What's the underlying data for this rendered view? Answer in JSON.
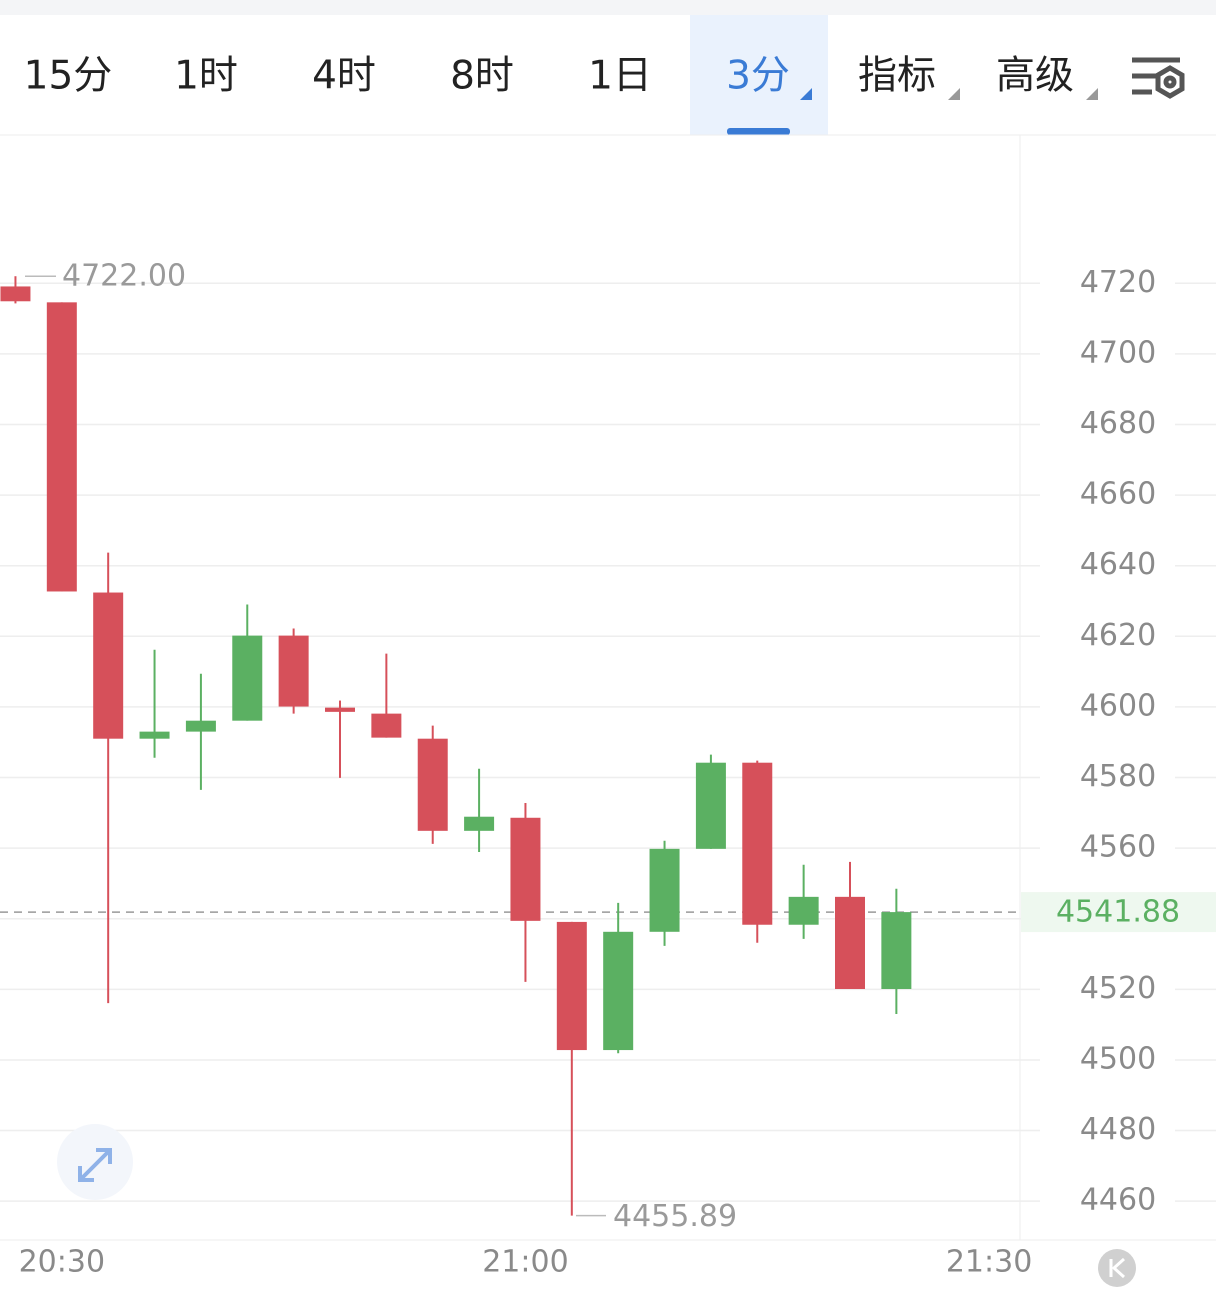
{
  "tabs": [
    "15分",
    "1时",
    "4时",
    "8时",
    "1日",
    "3分",
    "指标",
    "高级"
  ],
  "active_tab": 5,
  "chart_data": {
    "type": "candlestick",
    "x": [
      "20:27",
      "20:30",
      "20:33",
      "20:36",
      "20:39",
      "20:42",
      "20:45",
      "20:48",
      "20:51",
      "20:54",
      "20:57",
      "21:00",
      "21:03",
      "21:06",
      "21:09",
      "21:12",
      "21:15",
      "21:18",
      "21:21",
      "21:24"
    ],
    "open": [
      4719.1,
      4714.6,
      4632.4,
      4591.0,
      4593.0,
      4596.1,
      4620.2,
      4599.8,
      4598.1,
      4591.0,
      4564.9,
      4568.6,
      4539.1,
      4502.8,
      4536.3,
      4559.8,
      4584.2,
      4538.3,
      4546.2,
      4520.1
    ],
    "high": [
      4722,
      4714.6,
      4643.7,
      4616.2,
      4609.4,
      4629.0,
      4622.2,
      4601.8,
      4615.1,
      4594.7,
      4582.5,
      4572.8,
      4539.1,
      4544.5,
      4562.1,
      4586.5,
      4584.8,
      4555.3,
      4556.1,
      4548.5
    ],
    "low": [
      4714.3,
      4632.7,
      4516.1,
      4585.6,
      4576.5,
      4596.1,
      4598.1,
      4579.9,
      4591.3,
      4561.2,
      4558.9,
      4522.1,
      4455.89,
      4501.9,
      4532.3,
      4559.8,
      4533.2,
      4534.3,
      4520.1,
      4513.0
    ],
    "close": [
      4714.9,
      4632.7,
      4591.0,
      4593.0,
      4596.1,
      4620.2,
      4600.1,
      4598.6,
      4591.3,
      4564.9,
      4568.9,
      4539.4,
      4502.8,
      4536.3,
      4559.8,
      4584.2,
      4538.3,
      4546.2,
      4520.1,
      4541.88
    ],
    "up_color": "#5bb062",
    "down_color": "#d6505a",
    "xlim": [
      "20:26",
      "21:32"
    ],
    "xticks": [
      "20:30",
      "21:00",
      "21:30"
    ],
    "ylim": [
      4449,
      4762
    ],
    "yticks": [
      4460,
      4480,
      4500,
      4520,
      4540,
      4560,
      4580,
      4600,
      4620,
      4640,
      4660,
      4680,
      4700,
      4720
    ],
    "ytick_labels_shown": [
      4460,
      4480,
      4500,
      4520,
      4560,
      4580,
      4600,
      4620,
      4640,
      4660,
      4680,
      4700,
      4720
    ],
    "grid": true,
    "max_marker": {
      "value": 4722,
      "label": "4722.00"
    },
    "min_marker": 4455.89,
    "last_price": 4541.88
  }
}
